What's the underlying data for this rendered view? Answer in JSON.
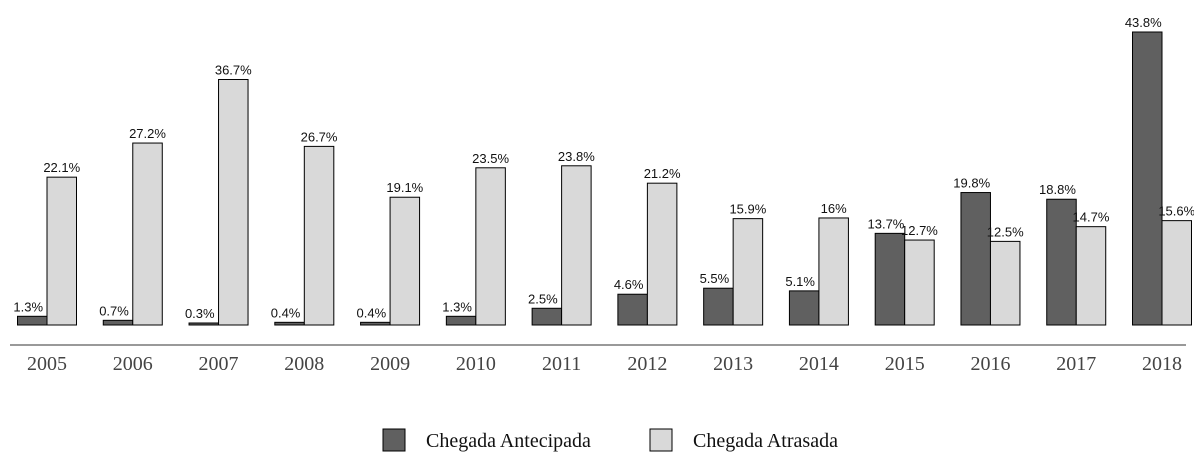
{
  "chart_data": {
    "type": "bar",
    "categories": [
      "2005",
      "2006",
      "2007",
      "2008",
      "2009",
      "2010",
      "2011",
      "2012",
      "2013",
      "2014",
      "2015",
      "2016",
      "2017",
      "2018"
    ],
    "series": [
      {
        "name": "Chegada Antecipada",
        "color": "#606060",
        "values": [
          1.3,
          0.7,
          0.3,
          0.4,
          0.4,
          1.3,
          2.5,
          4.6,
          5.5,
          5.1,
          13.7,
          19.8,
          18.8,
          43.8
        ],
        "value_labels": [
          "1.3%",
          "0.7%",
          "0.3%",
          "0.4%",
          "0.4%",
          "1.3%",
          "2.5%",
          "4.6%",
          "5.5%",
          "5.1%",
          "13.7%",
          "19.8%",
          "18.8%",
          "43.8%"
        ]
      },
      {
        "name": "Chegada Atrasada",
        "color": "#d9d9d9",
        "values": [
          22.1,
          27.2,
          36.7,
          26.7,
          19.1,
          23.5,
          23.8,
          21.2,
          15.9,
          16,
          12.7,
          12.5,
          14.7,
          15.6
        ],
        "value_labels": [
          "22.1%",
          "27.2%",
          "36.7%",
          "26.7%",
          "19.1%",
          "23.5%",
          "23.8%",
          "21.2%",
          "15.9%",
          "16%",
          "12.7%",
          "12.5%",
          "14.7%",
          "15.6%"
        ]
      }
    ],
    "legend": "bottom"
  }
}
